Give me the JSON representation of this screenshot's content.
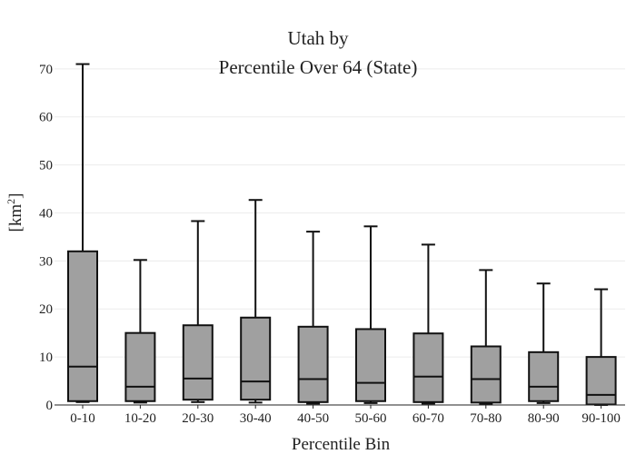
{
  "chart_data": {
    "type": "box",
    "title_line1": "Utah  by",
    "title_line2": "Percentile Over 64 (State)",
    "xlabel": "Percentile Bin",
    "ylabel_prefix": "[km",
    "ylabel_sup": "2",
    "ylabel_suffix": "]",
    "ylim": [
      0,
      73
    ],
    "yticks": [
      0,
      10,
      20,
      30,
      40,
      50,
      60,
      70
    ],
    "grid": true,
    "box_color": "#a0a0a0",
    "line_color": "#111111",
    "categories": [
      "0-10",
      "10-20",
      "20-30",
      "30-40",
      "40-50",
      "50-60",
      "60-70",
      "70-80",
      "80-90",
      "90-100"
    ],
    "boxes": [
      {
        "min": 0.6,
        "q1": 0.8,
        "median": 8.0,
        "q3": 32.0,
        "max": 71.0
      },
      {
        "min": 0.5,
        "q1": 0.8,
        "median": 3.8,
        "q3": 15.0,
        "max": 30.2
      },
      {
        "min": 0.6,
        "q1": 1.1,
        "median": 5.5,
        "q3": 16.6,
        "max": 38.3
      },
      {
        "min": 0.5,
        "q1": 1.1,
        "median": 4.9,
        "q3": 18.2,
        "max": 42.7
      },
      {
        "min": 0.3,
        "q1": 0.6,
        "median": 5.4,
        "q3": 16.3,
        "max": 36.1
      },
      {
        "min": 0.4,
        "q1": 0.8,
        "median": 4.6,
        "q3": 15.8,
        "max": 37.2
      },
      {
        "min": 0.3,
        "q1": 0.6,
        "median": 5.9,
        "q3": 14.9,
        "max": 33.4
      },
      {
        "min": 0.2,
        "q1": 0.5,
        "median": 5.4,
        "q3": 12.2,
        "max": 28.1
      },
      {
        "min": 0.4,
        "q1": 0.8,
        "median": 3.8,
        "q3": 11.0,
        "max": 25.3
      },
      {
        "min": 0.0,
        "q1": 0.1,
        "median": 2.1,
        "q3": 10.0,
        "max": 24.1
      }
    ]
  }
}
